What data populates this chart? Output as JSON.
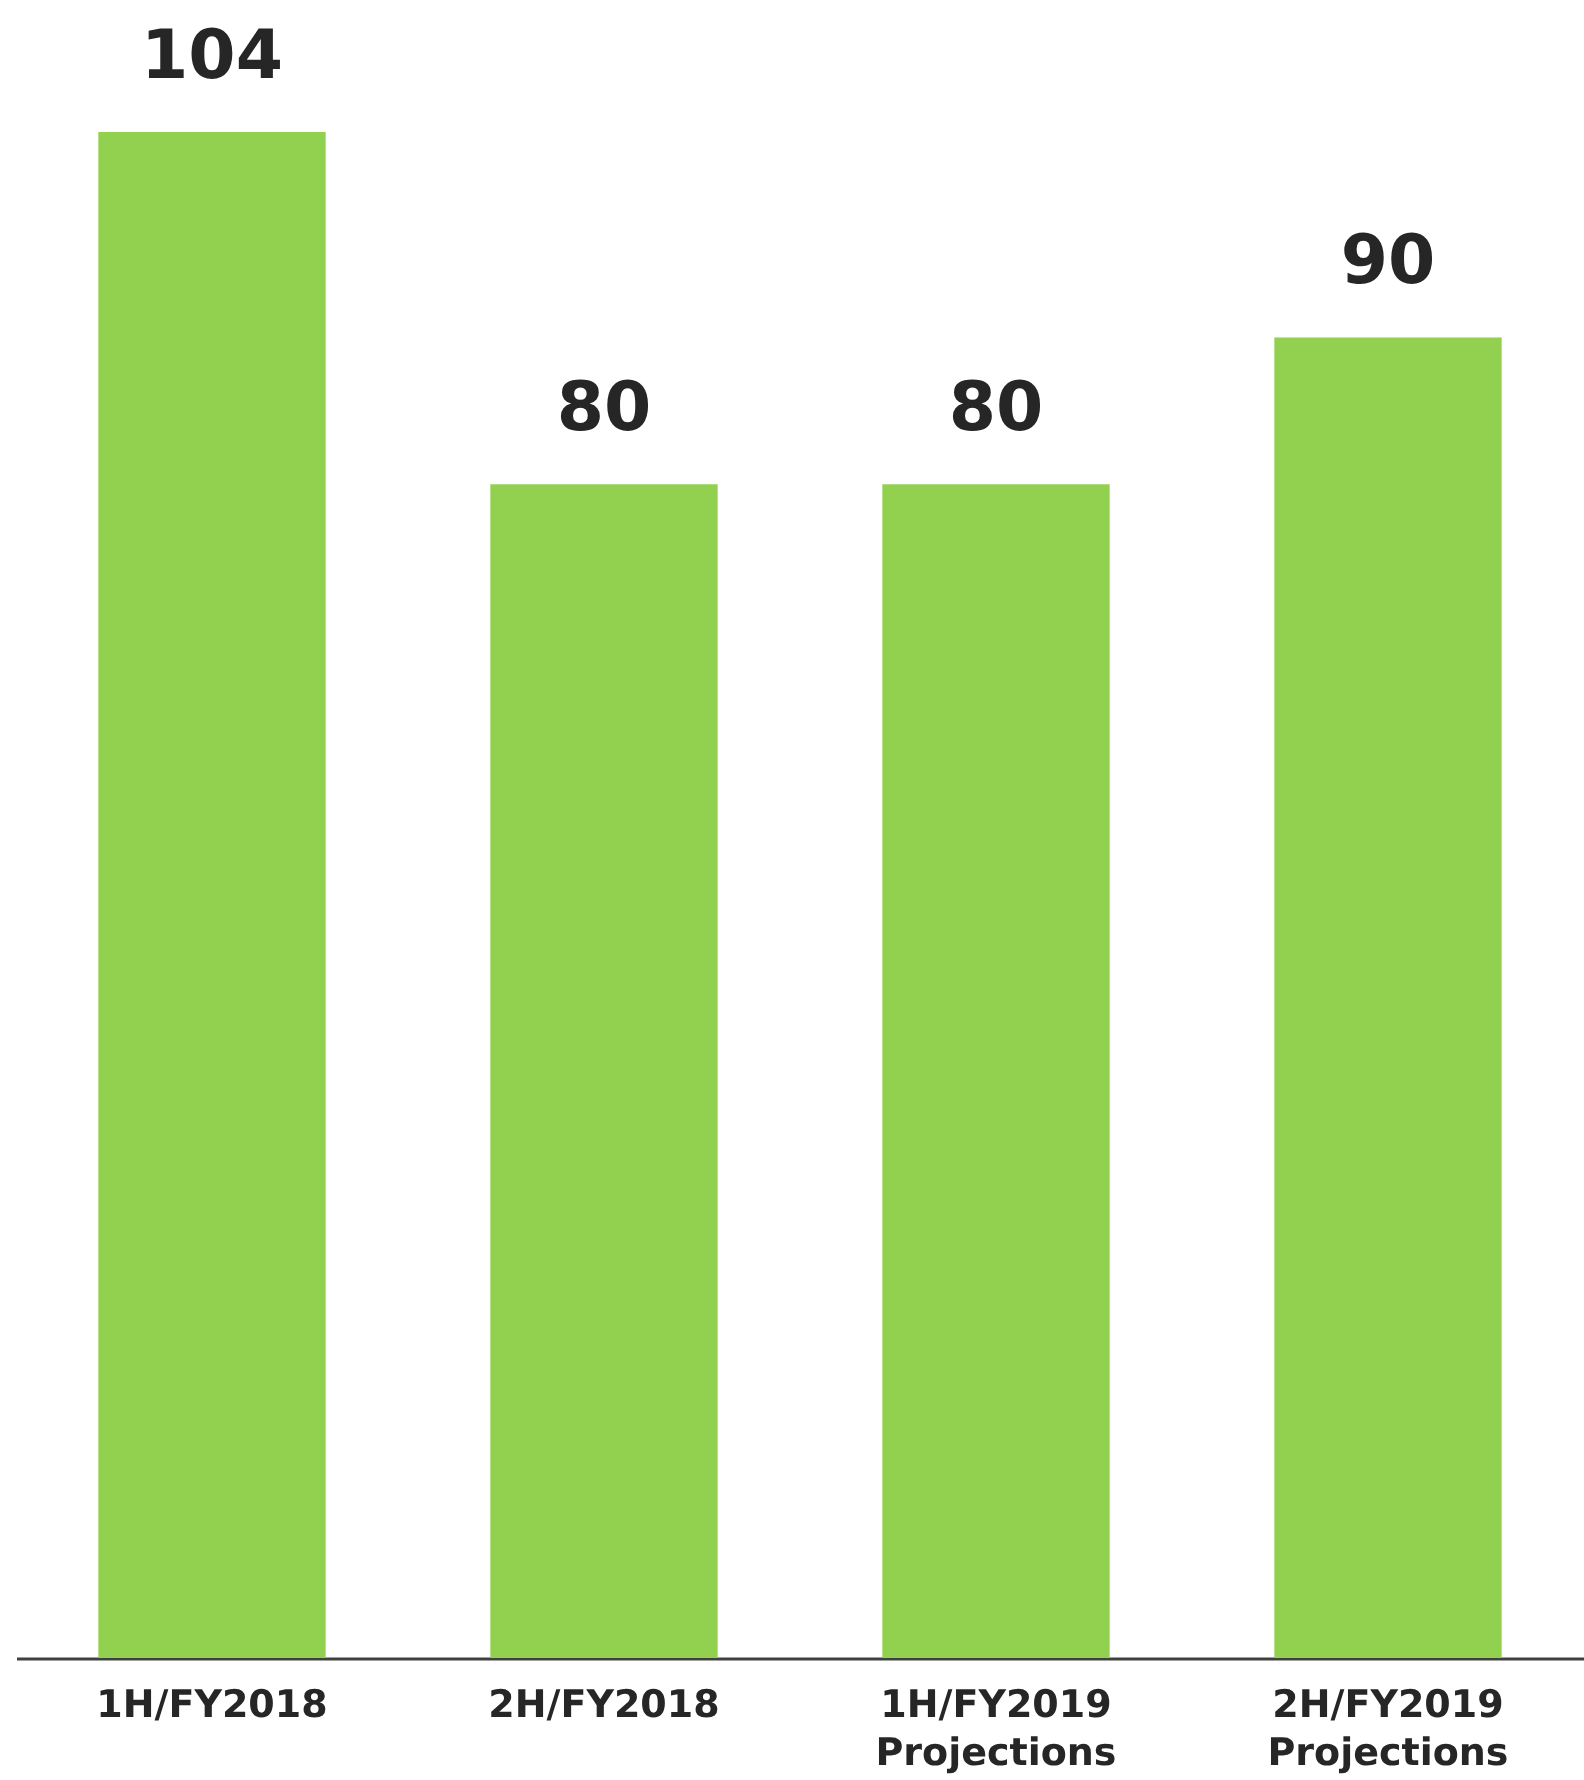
{
  "chart_data": {
    "type": "bar",
    "categories": [
      "1H/FY2018",
      "2H/FY2018",
      "1H/FY2019\nProjections",
      "2H/FY2019\nProjections"
    ],
    "values": [
      104,
      80,
      80,
      90
    ],
    "color": "#92d050",
    "data_labels": true,
    "grid": false
  }
}
